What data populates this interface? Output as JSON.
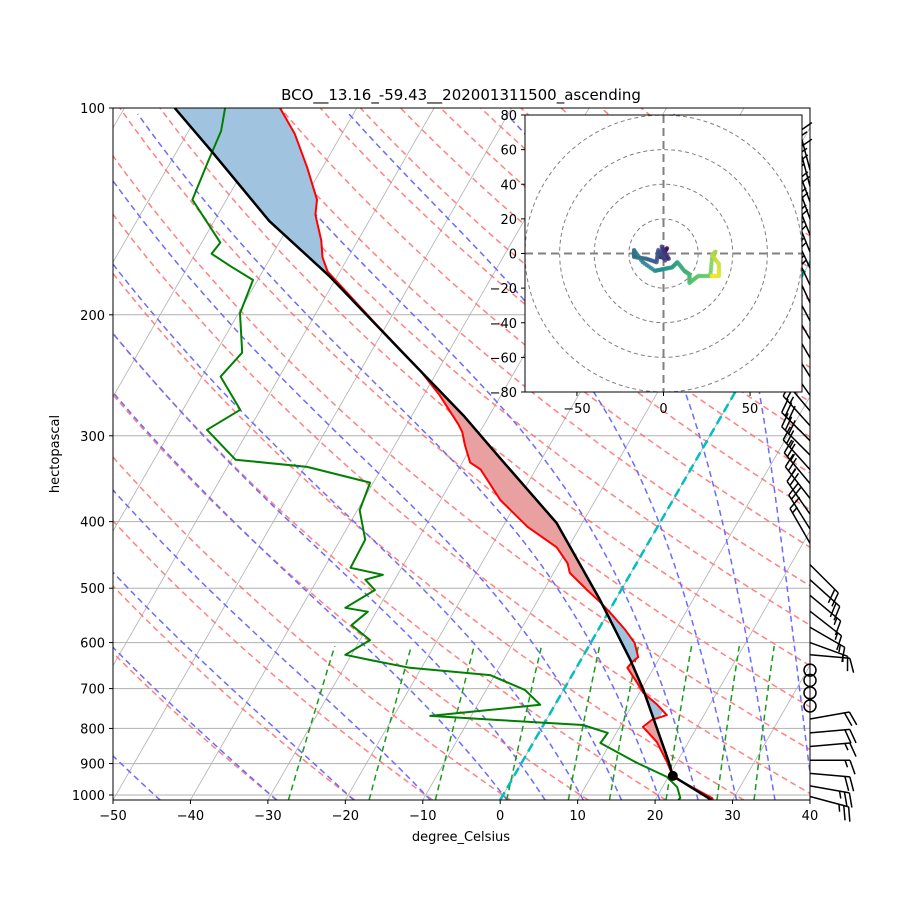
{
  "chart_data": {
    "type": "skew-t",
    "title": "BCO__13.16_-59.43__202001311500_ascending",
    "xlabel": "degree_Celsius",
    "ylabel": "hectopascal",
    "xlim": [
      -50,
      40
    ],
    "ylim": [
      1017,
      100
    ],
    "x_ticks": [
      "−50",
      "−40",
      "−30",
      "−20",
      "−10",
      "0",
      "10",
      "20",
      "30",
      "40"
    ],
    "x_tick_values": [
      -50,
      -40,
      -30,
      -20,
      -10,
      0,
      10,
      20,
      30,
      40
    ],
    "y_ticks": [
      "100",
      "200",
      "300",
      "400",
      "500",
      "600",
      "700",
      "800",
      "900",
      "1000"
    ],
    "y_tick_values": [
      100,
      200,
      300,
      400,
      500,
      600,
      700,
      800,
      900,
      1000
    ],
    "temperature": {
      "color": "#ff0000",
      "p": [
        1017,
        1010,
        941,
        895,
        837,
        796,
        778,
        765,
        739,
        710,
        687,
        653,
        640,
        630,
        601,
        575,
        543,
        524,
        503,
        475,
        460,
        436,
        407,
        372,
        336,
        328,
        309,
        296,
        289,
        262,
        241,
        221,
        204,
        173,
        165,
        156,
        143,
        136,
        122,
        109,
        100
      ],
      "T": [
        27.5,
        27.2,
        20.6,
        18.7,
        15.9,
        13.0,
        13.6,
        15.2,
        13.2,
        10.5,
        9.0,
        6.6,
        6.8,
        7.2,
        5.7,
        3.5,
        0.3,
        -1.8,
        -4.4,
        -7.9,
        -8.9,
        -11.5,
        -16.8,
        -22.3,
        -27.1,
        -29.0,
        -31.0,
        -32.3,
        -33.3,
        -37.9,
        -42.3,
        -47.4,
        -52.1,
        -61.6,
        -63.3,
        -64.7,
        -67.4,
        -68.3,
        -72.0,
        -76.1,
        -79.9
      ]
    },
    "dewpoint": {
      "color": "#008000",
      "p": [
        1017,
        1010,
        974,
        941,
        898,
        840,
        812,
        791,
        778,
        767,
        739,
        703,
        669,
        653,
        636,
        625,
        595,
        566,
        541,
        534,
        503,
        486,
        478,
        467,
        425,
        385,
        351,
        333,
        325,
        294,
        275,
        246,
        227,
        199,
        178,
        170,
        163,
        157,
        136,
        120,
        108,
        100
      ],
      "T": [
        23.0,
        23.1,
        21.9,
        19.8,
        14.9,
        8.7,
        8.9,
        5.1,
        -6.0,
        -15.3,
        -1.9,
        -5.0,
        -10.6,
        -21.5,
        -27.2,
        -30.8,
        -28.7,
        -32.2,
        -31.1,
        -34.3,
        -31.8,
        -33.8,
        -31.9,
        -36.6,
        -36.8,
        -39.7,
        -40.4,
        -49.7,
        -59.5,
        -65.4,
        -62.6,
        -67.6,
        -66.6,
        -69.8,
        -70.6,
        -74.5,
        -77.9,
        -77.6,
        -84.4,
        -85.2,
        -85.8,
        -87.0
      ]
    },
    "parcel_profile": {
      "color": "#000000",
      "p": [
        1017,
        938,
        889,
        703,
        636,
        520,
        402,
        323,
        280,
        225,
        176,
        146,
        115,
        100
      ],
      "T": [
        27.3,
        20.5,
        18.7,
        10.3,
        6.4,
        -2.0,
        -13.3,
        -25.5,
        -33.4,
        -46.4,
        -60.9,
        -72.9,
        -85.8,
        -93.5
      ]
    },
    "lcl": {
      "p": 938,
      "T": 20.5
    },
    "shading": {
      "cape_color": "#e8a0a0",
      "cin_color": "#a0c4e0"
    },
    "zero_isotherm": {
      "T": 0,
      "color": "#00bfbf"
    },
    "dry_adiabats_theta_C": [
      -30,
      -20,
      -10,
      0,
      10,
      20,
      30,
      40,
      50,
      60,
      70,
      80,
      90,
      100,
      110,
      120,
      130,
      140,
      150,
      160,
      170,
      180,
      190
    ],
    "moist_adiabats_T0_C": [
      -45,
      -30,
      -20,
      -10,
      0,
      5,
      10,
      15,
      20,
      25,
      30,
      35,
      40
    ],
    "mixing_ratio_lines_gkg": [
      0.4,
      1,
      2,
      4,
      7,
      10,
      16,
      24,
      32
    ],
    "isotherms_C": [
      -120,
      -110,
      -100,
      -90,
      -80,
      -70,
      -60,
      -50,
      -40,
      -30,
      -20,
      -10,
      0,
      10,
      20,
      30,
      40
    ],
    "wind_barbs": {
      "units": "kt",
      "p": [
        123,
        130,
        137,
        145,
        153,
        162,
        171,
        181,
        192,
        204,
        217,
        231,
        246,
        262,
        276,
        290,
        305,
        320,
        336,
        352,
        370,
        390,
        410,
        430,
        462,
        486,
        512,
        540,
        570,
        600,
        625,
        658,
        681,
        710,
        742,
        775,
        812,
        850,
        890,
        930,
        970,
        1005
      ],
      "dir": [
        345,
        345,
        340,
        340,
        338,
        338,
        335,
        335,
        335,
        332,
        330,
        330,
        328,
        325,
        320,
        318,
        315,
        315,
        318,
        320,
        322,
        325,
        328,
        330,
        135,
        132,
        130,
        128,
        120,
        110,
        95,
        0,
        0,
        0,
        0,
        80,
        85,
        85,
        90,
        95,
        100,
        105
      ],
      "speed": [
        15,
        15,
        15,
        20,
        20,
        20,
        20,
        20,
        20,
        15,
        15,
        15,
        15,
        20,
        25,
        25,
        30,
        30,
        25,
        25,
        25,
        20,
        20,
        15,
        20,
        20,
        15,
        15,
        15,
        15,
        10,
        0,
        0,
        0,
        0,
        20,
        20,
        15,
        15,
        20,
        25,
        25
      ]
    },
    "hodograph": {
      "xlim": [
        -80,
        80
      ],
      "ylim": [
        -80,
        80
      ],
      "x_ticks": [
        "−50",
        "0",
        "50"
      ],
      "x_tick_values": [
        -50,
        0,
        50
      ],
      "y_ticks": [
        "80",
        "60",
        "40",
        "20",
        "0",
        "−20",
        "−40",
        "−60",
        "−80"
      ],
      "y_tick_values": [
        80,
        60,
        40,
        20,
        0,
        -20,
        -40,
        -60,
        -80
      ],
      "rings": [
        20,
        40,
        60,
        80
      ],
      "colormap": [
        "#440154",
        "#3b528b",
        "#21918c",
        "#5ec962",
        "#fde725"
      ],
      "u": [
        0,
        2,
        -2,
        3,
        -1,
        1,
        -3,
        -4,
        -10,
        -17,
        -17,
        -12,
        -5,
        0,
        5,
        8,
        12,
        15,
        15,
        20,
        27,
        28,
        30,
        28,
        32,
        32,
        27
      ],
      "v": [
        0,
        3,
        -2,
        -3,
        4,
        -4,
        2,
        -5,
        -3,
        -2,
        2,
        -5,
        -10,
        -9,
        -8,
        -5,
        -10,
        -12,
        -17,
        -13,
        -13,
        -3,
        1,
        -1,
        -6,
        -13,
        -13
      ]
    }
  }
}
